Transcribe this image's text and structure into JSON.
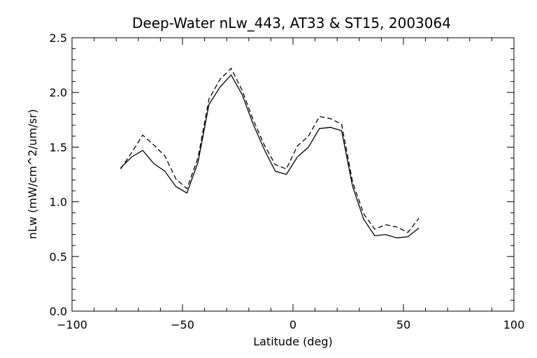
{
  "chart_data": {
    "type": "line",
    "title": "Deep-Water nLw_443, AT33 & ST15, 2003064",
    "xlabel": "Latitude (deg)",
    "ylabel": "nLw (mW/cm^2/um/sr)",
    "xlim": [
      -100,
      100
    ],
    "ylim": [
      0,
      2.5
    ],
    "xticks": [
      -100,
      -50,
      0,
      50,
      100
    ],
    "yticks": [
      0.0,
      0.5,
      1.0,
      1.5,
      2.0,
      2.5
    ],
    "xtick_labels": [
      "−100",
      "−50",
      "0",
      "50",
      "100"
    ],
    "ytick_labels": [
      "0.0",
      "0.5",
      "1.0",
      "1.5",
      "2.0",
      "2.5"
    ],
    "grid": false,
    "legend": "none",
    "series": [
      {
        "style": "solid",
        "color": "#000000",
        "x": [
          -78,
          -73,
          -68,
          -63,
          -58,
          -53,
          -48,
          -43,
          -38,
          -33,
          -28,
          -23,
          -18,
          -13,
          -8,
          -3,
          2,
          7,
          12,
          17,
          22,
          27,
          32,
          37,
          42,
          47,
          52,
          57
        ],
        "y": [
          1.31,
          1.41,
          1.47,
          1.35,
          1.28,
          1.14,
          1.08,
          1.36,
          1.89,
          2.05,
          2.16,
          1.98,
          1.71,
          1.48,
          1.28,
          1.25,
          1.41,
          1.5,
          1.67,
          1.68,
          1.65,
          1.14,
          0.84,
          0.69,
          0.7,
          0.67,
          0.68,
          0.76
        ]
      },
      {
        "style": "dashed",
        "color": "#000000",
        "x": [
          -78,
          -73,
          -68,
          -63,
          -58,
          -53,
          -48,
          -43,
          -38,
          -33,
          -28,
          -23,
          -18,
          -13,
          -8,
          -3,
          2,
          7,
          12,
          17,
          22,
          27,
          32,
          37,
          42,
          47,
          52,
          57
        ],
        "y": [
          1.3,
          1.45,
          1.61,
          1.52,
          1.42,
          1.21,
          1.12,
          1.4,
          1.94,
          2.12,
          2.22,
          2.02,
          1.75,
          1.52,
          1.34,
          1.3,
          1.51,
          1.6,
          1.78,
          1.76,
          1.71,
          1.18,
          0.89,
          0.75,
          0.79,
          0.77,
          0.72,
          0.85
        ]
      }
    ]
  }
}
